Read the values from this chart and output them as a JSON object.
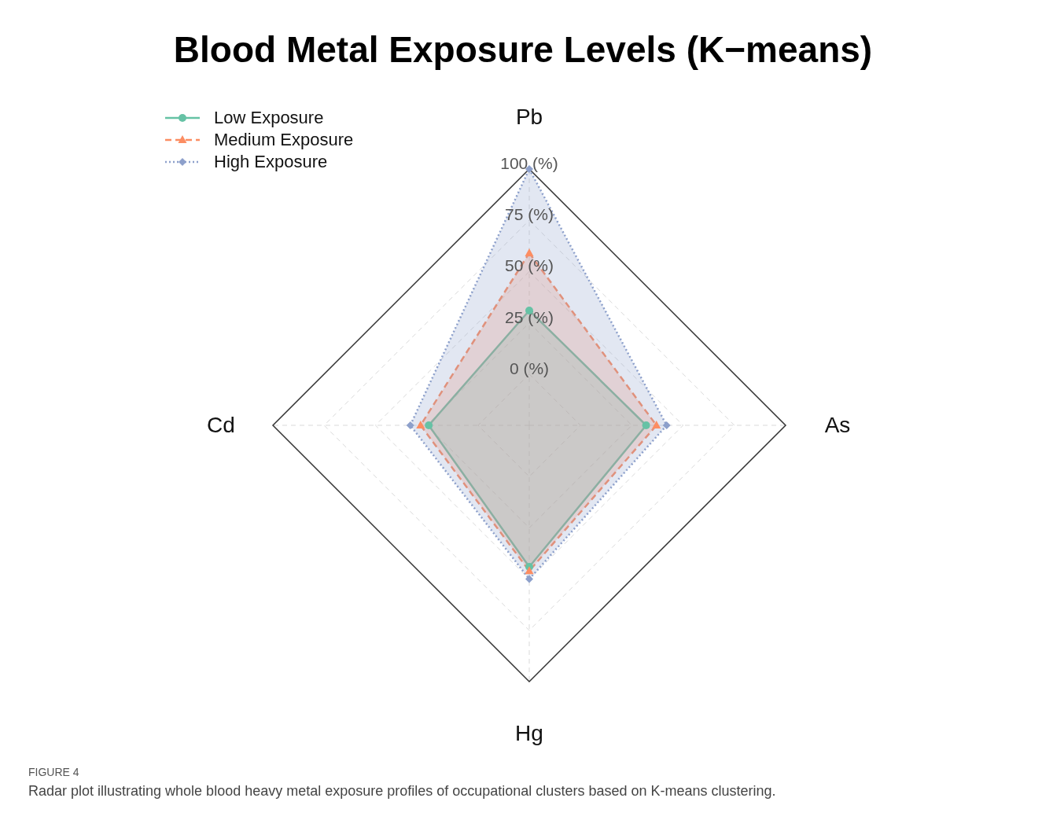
{
  "chart_data": {
    "type": "radar",
    "title": "Blood Metal Exposure Levels (K−means)",
    "categories": [
      "Pb",
      "As",
      "Hg",
      "Cd"
    ],
    "series": [
      {
        "name": "Low Exposure",
        "color": "#66c2a5",
        "values": [
          31,
          32,
          44,
          24
        ],
        "marker": "circle",
        "line_style": "solid"
      },
      {
        "name": "Medium Exposure",
        "color": "#fc8d62",
        "values": [
          59,
          37,
          46,
          28
        ],
        "marker": "triangle",
        "line_style": "dashed"
      },
      {
        "name": "High Exposure",
        "color": "#8da0cb",
        "values": [
          100,
          42,
          50,
          33
        ],
        "marker": "diamond",
        "line_style": "dotted"
      }
    ],
    "ylim": [
      -25,
      100
    ],
    "yticks": [
      {
        "value": 0,
        "label": "0 (%)"
      },
      {
        "value": 25,
        "label": "25 (%)"
      },
      {
        "value": 50,
        "label": "50 (%)"
      },
      {
        "value": 75,
        "label": "75 (%)"
      },
      {
        "value": 100,
        "label": "100 (%)"
      }
    ],
    "grid": true,
    "legend": "top left",
    "annotations": [
      "FIGURE 4",
      "Radar plot illustrating whole blood heavy metal exposure profiles of occupational clusters based on K-means clustering."
    ]
  }
}
